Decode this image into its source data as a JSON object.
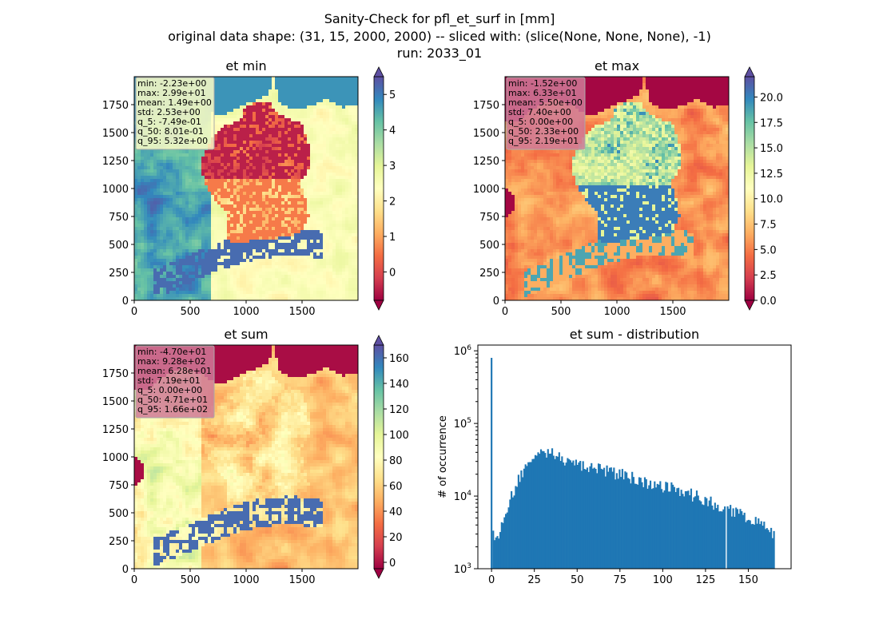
{
  "figure": {
    "suptitle": [
      "Sanity-Check for pfl_et_surf in [mm]",
      "original data shape: (31, 15, 2000, 2000) -- sliced with: (slice(None, None, None), -1)",
      "run: 2033_01"
    ]
  },
  "chart_data": [
    {
      "type": "heatmap",
      "title": "et min",
      "colormap": "Spectral",
      "x_ticks": [
        0,
        500,
        1000,
        1500
      ],
      "y_ticks": [
        0,
        250,
        500,
        750,
        1000,
        1250,
        1500,
        1750
      ],
      "xlim": [
        0,
        2000
      ],
      "ylim": [
        0,
        2000
      ],
      "colorbar": {
        "range": [
          -0.8,
          5.5
        ],
        "ticks": [
          0,
          1,
          2,
          3,
          4,
          5
        ],
        "tick_labels": [
          "0",
          "1",
          "2",
          "3",
          "4",
          "5"
        ],
        "extend": "both"
      },
      "stats": [
        "min: -2.23e+00",
        "max: 2.99e+01",
        "mean: 1.49e+00",
        "std: 2.53e+00",
        "q_5: -7.49e-01",
        "q_50: 8.01e-01",
        "q_95: 5.32e+00"
      ],
      "stats_box_color": "#fdfdc4"
    },
    {
      "type": "heatmap",
      "title": "et max",
      "colormap": "Spectral",
      "x_ticks": [
        0,
        500,
        1000,
        1500
      ],
      "y_ticks": [
        0,
        250,
        500,
        750,
        1000,
        1250,
        1500,
        1750
      ],
      "xlim": [
        0,
        2000
      ],
      "ylim": [
        0,
        2000
      ],
      "colorbar": {
        "range": [
          0,
          22
        ],
        "ticks": [
          0,
          2.5,
          5,
          7.5,
          10,
          12.5,
          15,
          17.5,
          20
        ],
        "tick_labels": [
          "0.0",
          "2.5",
          "5.0",
          "7.5",
          "10.0",
          "12.5",
          "15.0",
          "17.5",
          "20.0"
        ],
        "extend": "both"
      },
      "stats": [
        "min: -1.52e+00",
        "max: 6.33e+01",
        "mean: 5.50e+00",
        "std: 7.40e+00",
        "q_5: 0.00e+00",
        "q_50: 2.33e+00",
        "q_95: 2.19e+01"
      ],
      "stats_box_color": "#d07a98"
    },
    {
      "type": "heatmap",
      "title": "et sum",
      "colormap": "Spectral",
      "x_ticks": [
        0,
        500,
        1000,
        1500
      ],
      "y_ticks": [
        0,
        250,
        500,
        750,
        1000,
        1250,
        1500,
        1750
      ],
      "xlim": [
        0,
        2000
      ],
      "ylim": [
        0,
        2000
      ],
      "colorbar": {
        "range": [
          -5,
          170
        ],
        "ticks": [
          0,
          20,
          40,
          60,
          80,
          100,
          120,
          140,
          160
        ],
        "tick_labels": [
          "0",
          "20",
          "40",
          "60",
          "80",
          "100",
          "120",
          "140",
          "160"
        ],
        "extend": "both"
      },
      "stats": [
        "min: -4.70e+01",
        "max: 9.28e+02",
        "mean: 6.28e+01",
        "std: 7.19e+01",
        "q_5: 0.00e+00",
        "q_50: 4.71e+01",
        "q_95: 1.66e+02"
      ],
      "stats_box_color": "#d07a98"
    },
    {
      "type": "bar",
      "subtype": "histogram",
      "title": "et sum - distribution",
      "ylabel": "# of occurrence",
      "xlabel": "",
      "yscale": "log",
      "xlim": [
        -8,
        175
      ],
      "ylim": [
        1000,
        1200000
      ],
      "x_ticks": [
        0,
        25,
        50,
        75,
        100,
        125,
        150
      ],
      "y_tick_labels": [
        "10^3",
        "10^4",
        "10^5",
        "10^6"
      ],
      "color": "#1f77b4",
      "peak": {
        "x": 0,
        "y": 800000
      },
      "bin_width": 1,
      "envelope": {
        "x": [
          1,
          2,
          3,
          5,
          8,
          10,
          13,
          16,
          20,
          24,
          28,
          32,
          35,
          38,
          42,
          46,
          50,
          55,
          60,
          65,
          70,
          75,
          80,
          85,
          90,
          95,
          100,
          105,
          110,
          115,
          120,
          125,
          130,
          135,
          140,
          145,
          150,
          155,
          160,
          165
        ],
        "y": [
          3200,
          2500,
          2200,
          3600,
          6500,
          8000,
          12000,
          18000,
          25000,
          32000,
          37000,
          40000,
          39000,
          36000,
          32000,
          29000,
          27000,
          26000,
          24000,
          23000,
          22000,
          20000,
          19000,
          17000,
          16000,
          15000,
          14000,
          13000,
          12000,
          11000,
          10000,
          9000,
          8000,
          7000,
          6300,
          5600,
          5000,
          4400,
          3700,
          3000
        ]
      }
    }
  ]
}
